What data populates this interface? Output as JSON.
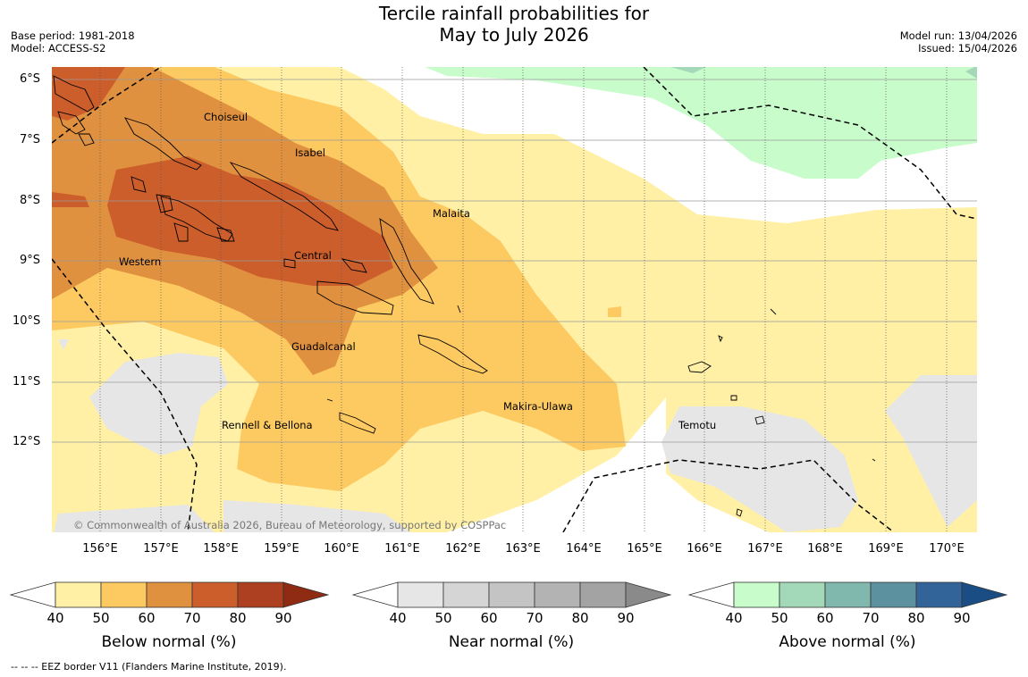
{
  "title": {
    "line1": "Tercile rainfall probabilities for",
    "line2": "May to July 2026"
  },
  "meta": {
    "base_period": "Base period: 1981-2018",
    "model": "Model: ACCESS-S2",
    "model_run": "Model run: 13/04/2026",
    "issued": "Issued: 15/04/2026"
  },
  "axes": {
    "lat_labels": [
      "6°S",
      "7°S",
      "8°S",
      "9°S",
      "10°S",
      "11°S",
      "12°S"
    ],
    "lon_labels": [
      "156°E",
      "157°E",
      "158°E",
      "159°E",
      "160°E",
      "161°E",
      "162°E",
      "163°E",
      "164°E",
      "165°E",
      "166°E",
      "167°E",
      "168°E",
      "169°E",
      "170°E"
    ]
  },
  "regions": {
    "choiseul": "Choiseul",
    "isabel": "Isabel",
    "malaita": "Malaita",
    "western": "Western",
    "central": "Central",
    "guadalcanal": "Guadalcanal",
    "makira_ulawa": "Makira-Ulawa",
    "temotu": "Temotu",
    "rennell_bellona": "Rennell & Bellona"
  },
  "copyright": "© Commonwealth of Australia 2026, Bureau of Meteorology, supported by COSPPac",
  "colorbars": {
    "below": {
      "title": "Below normal (%)",
      "ticks": [
        "40",
        "50",
        "60",
        "70",
        "80",
        "90"
      ],
      "colors": [
        "#fff0a6",
        "#fdca62",
        "#e0913f",
        "#cc5e2c",
        "#ad4020",
        "#8e2b12"
      ]
    },
    "near": {
      "title": "Near normal (%)",
      "ticks": [
        "40",
        "50",
        "60",
        "70",
        "80",
        "90"
      ],
      "colors": [
        "#e6e6e6",
        "#d5d5d5",
        "#c4c4c4",
        "#b3b3b3",
        "#a3a3a3",
        "#8a8a8a"
      ]
    },
    "above": {
      "title": "Above normal (%)",
      "ticks": [
        "40",
        "50",
        "60",
        "70",
        "80",
        "90"
      ],
      "colors": [
        "#c8fcca",
        "#a3d8b8",
        "#80b8ae",
        "#5c92a0",
        "#32649a",
        "#1b4d85"
      ]
    }
  },
  "footnote": "--  --  -- EEZ border V11 (Flanders Marine Institute, 2019)."
}
